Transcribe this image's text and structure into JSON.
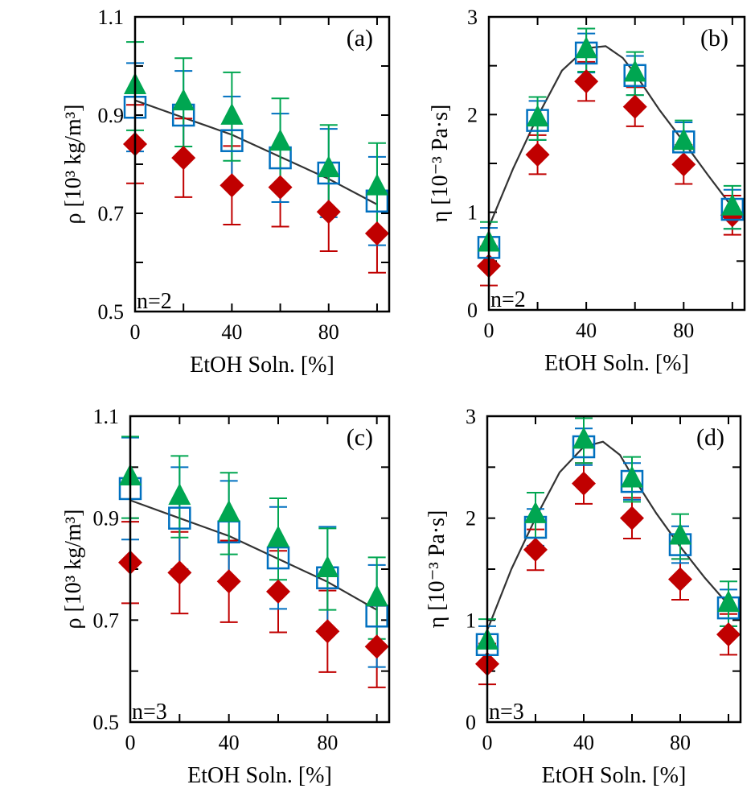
{
  "colors": {
    "triangle": "#00a651",
    "square": "#0070c0",
    "diamond": "#c00000",
    "fit": "#333333"
  },
  "chart_data": [
    {
      "id": "a",
      "type": "scatter",
      "panel_label": "(a)",
      "annotation": "n=2",
      "xlabel": "EtOH Soln. [%]",
      "ylabel": "ρ [10³ kg/m³]",
      "xlim": [
        0,
        105
      ],
      "ylim": [
        0.5,
        1.1
      ],
      "xticks": [
        0,
        40,
        80
      ],
      "xtick_labels": [
        "0",
        "40",
        "80"
      ],
      "yticks": [
        0.5,
        0.7,
        0.9,
        1.1
      ],
      "ytick_labels": [
        "0.5",
        "0.7",
        "0.9",
        "1.1"
      ],
      "minor_xstep": 20,
      "minor_ystep": 0.1,
      "x": [
        0,
        20,
        40,
        60,
        80,
        100
      ],
      "series": [
        {
          "name": "diamond",
          "marker": "diamond",
          "values": [
            0.841,
            0.813,
            0.757,
            0.753,
            0.703,
            0.659
          ],
          "err": 0.08
        },
        {
          "name": "square",
          "marker": "square",
          "values": [
            0.916,
            0.9,
            0.848,
            0.813,
            0.782,
            0.725
          ],
          "err": 0.09
        },
        {
          "name": "triangle",
          "marker": "triangle",
          "values": [
            0.959,
            0.926,
            0.897,
            0.844,
            0.79,
            0.753
          ],
          "err": 0.09
        }
      ],
      "fit": [
        [
          0,
          0.93
        ],
        [
          20,
          0.895
        ],
        [
          40,
          0.86
        ],
        [
          60,
          0.815
        ],
        [
          80,
          0.77
        ],
        [
          100,
          0.718
        ]
      ]
    },
    {
      "id": "b",
      "type": "scatter",
      "panel_label": "(b)",
      "annotation": "n=2",
      "xlabel": "EtOH Soln. [%]",
      "ylabel": "η [10⁻³ Pa·s]",
      "xlim": [
        0,
        105
      ],
      "ylim": [
        0,
        3
      ],
      "xticks": [
        0,
        40,
        80
      ],
      "xtick_labels": [
        "0",
        "40",
        "80"
      ],
      "yticks": [
        0,
        1,
        2,
        3
      ],
      "ytick_labels": [
        "0",
        "1",
        "2",
        "3"
      ],
      "minor_xstep": 20,
      "minor_ystep": 0.5,
      "x": [
        0,
        20,
        40,
        60,
        80,
        100
      ],
      "series": [
        {
          "name": "diamond",
          "marker": "diamond",
          "values": [
            0.45,
            1.59,
            2.34,
            2.08,
            1.49,
            0.97
          ],
          "err": 0.2
        },
        {
          "name": "square",
          "marker": "square",
          "values": [
            0.64,
            1.94,
            2.63,
            2.4,
            1.72,
            1.03
          ],
          "err": 0.2
        },
        {
          "name": "triangle",
          "marker": "triangle",
          "values": [
            0.68,
            1.96,
            2.66,
            2.42,
            1.72,
            1.05
          ],
          "err": 0.22
        }
      ],
      "fit": [
        [
          0,
          0.85
        ],
        [
          10,
          1.45
        ],
        [
          20,
          1.98
        ],
        [
          30,
          2.45
        ],
        [
          40,
          2.68
        ],
        [
          48,
          2.7
        ],
        [
          55,
          2.58
        ],
        [
          60,
          2.42
        ],
        [
          70,
          2.05
        ],
        [
          80,
          1.72
        ],
        [
          90,
          1.38
        ],
        [
          100,
          1.05
        ]
      ]
    },
    {
      "id": "c",
      "type": "scatter",
      "panel_label": "(c)",
      "annotation": "n=3",
      "xlabel": "EtOH Soln. [%]",
      "ylabel": "ρ [10³ kg/m³]",
      "xlim": [
        0,
        105
      ],
      "ylim": [
        0.5,
        1.1
      ],
      "xticks": [
        0,
        40,
        80
      ],
      "xtick_labels": [
        "0",
        "40",
        "80"
      ],
      "yticks": [
        0.5,
        0.7,
        0.9,
        1.1
      ],
      "ytick_labels": [
        "0.5",
        "0.7",
        "0.9",
        "1.1"
      ],
      "minor_xstep": 20,
      "minor_ystep": 0.1,
      "x": [
        0,
        20,
        40,
        60,
        80,
        100
      ],
      "series": [
        {
          "name": "diamond",
          "marker": "diamond",
          "values": [
            0.813,
            0.793,
            0.776,
            0.756,
            0.678,
            0.648
          ],
          "err": 0.08
        },
        {
          "name": "square",
          "marker": "square",
          "values": [
            0.958,
            0.9,
            0.873,
            0.822,
            0.783,
            0.708
          ],
          "err": 0.1
        },
        {
          "name": "triangle",
          "marker": "triangle",
          "values": [
            0.98,
            0.942,
            0.909,
            0.859,
            0.8,
            0.743
          ],
          "err": 0.08
        }
      ],
      "fit": [
        [
          0,
          0.935
        ],
        [
          20,
          0.9
        ],
        [
          40,
          0.865
        ],
        [
          60,
          0.82
        ],
        [
          80,
          0.775
        ],
        [
          100,
          0.72
        ]
      ]
    },
    {
      "id": "d",
      "type": "scatter",
      "panel_label": "(d)",
      "annotation": "n=3",
      "xlabel": "EtOH Soln. [%]",
      "ylabel": "η [10⁻³ Pa·s]",
      "xlim": [
        0,
        105
      ],
      "ylim": [
        0,
        3
      ],
      "xticks": [
        0,
        40,
        80
      ],
      "xtick_labels": [
        "0",
        "40",
        "80"
      ],
      "yticks": [
        0,
        1,
        2,
        3
      ],
      "ytick_labels": [
        "0",
        "1",
        "2",
        "3"
      ],
      "minor_xstep": 20,
      "minor_ystep": 0.5,
      "x": [
        0,
        20,
        40,
        60,
        80,
        100
      ],
      "series": [
        {
          "name": "diamond",
          "marker": "diamond",
          "values": [
            0.57,
            1.69,
            2.34,
            2.0,
            1.4,
            0.86
          ],
          "err": 0.2
        },
        {
          "name": "square",
          "marker": "square",
          "values": [
            0.76,
            1.91,
            2.7,
            2.36,
            1.74,
            1.12
          ],
          "err": 0.18
        },
        {
          "name": "triangle",
          "marker": "triangle",
          "values": [
            0.79,
            2.03,
            2.76,
            2.38,
            1.82,
            1.16
          ],
          "err": 0.22
        }
      ],
      "fit": [
        [
          0,
          0.9
        ],
        [
          10,
          1.5
        ],
        [
          20,
          2.0
        ],
        [
          30,
          2.45
        ],
        [
          40,
          2.7
        ],
        [
          48,
          2.75
        ],
        [
          55,
          2.62
        ],
        [
          60,
          2.42
        ],
        [
          70,
          2.05
        ],
        [
          80,
          1.72
        ],
        [
          90,
          1.42
        ],
        [
          100,
          1.15
        ]
      ]
    }
  ]
}
